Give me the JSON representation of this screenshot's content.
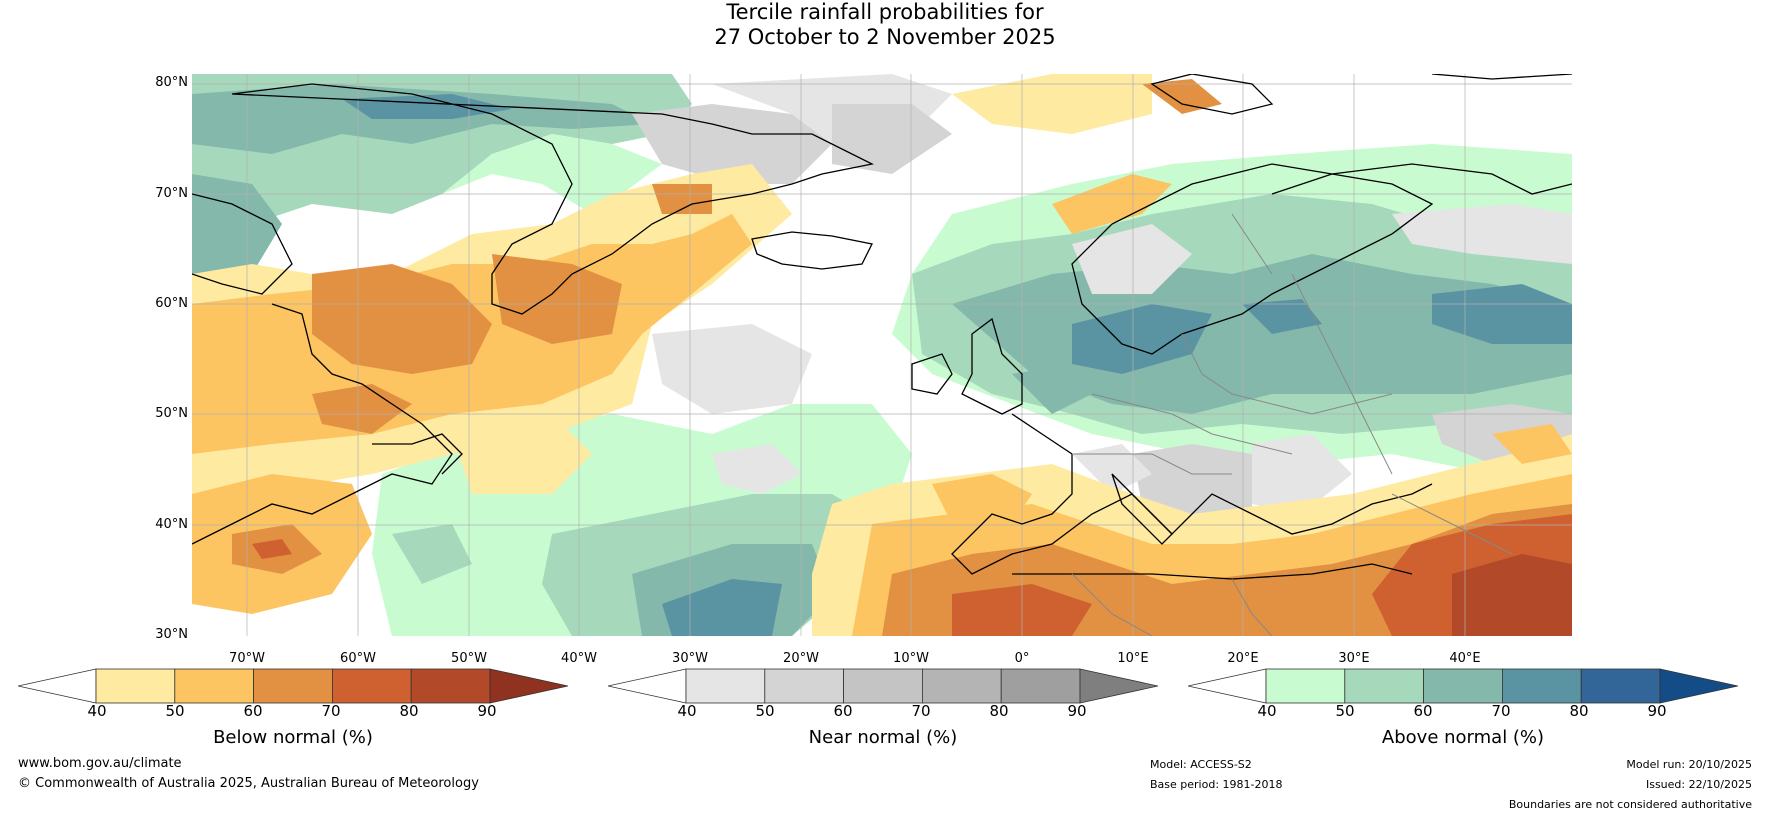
{
  "title": {
    "line1": "Tercile rainfall probabilities for",
    "line2": "27 October to 2 November 2025"
  },
  "map": {
    "lat_labels": [
      "80°N",
      "70°N",
      "60°N",
      "50°N",
      "40°N",
      "30°N"
    ],
    "lon_labels": [
      "70°W",
      "60°W",
      "50°W",
      "40°W",
      "30°W",
      "20°W",
      "10°W",
      "0°",
      "10°E",
      "20°E",
      "30°E",
      "40°E"
    ]
  },
  "legends": {
    "below": {
      "title": "Below normal (%)",
      "ticks": [
        "40",
        "50",
        "60",
        "70",
        "80",
        "90"
      ],
      "colors": [
        "#ffffff",
        "#feeaa0",
        "#fdc462",
        "#e19141",
        "#cf6130",
        "#b24a2a",
        "#8f321f"
      ]
    },
    "near": {
      "title": "Near normal (%)",
      "ticks": [
        "40",
        "50",
        "60",
        "70",
        "80",
        "90"
      ],
      "colors": [
        "#ffffff",
        "#e5e5e5",
        "#d4d4d4",
        "#c4c4c4",
        "#b4b4b4",
        "#9f9f9f",
        "#7f7f7f"
      ]
    },
    "above": {
      "title": "Above normal (%)",
      "ticks": [
        "40",
        "50",
        "60",
        "70",
        "80",
        "90"
      ],
      "colors": [
        "#ffffff",
        "#c8fcd0",
        "#a6d9bb",
        "#84b8ab",
        "#5a94a3",
        "#326598",
        "#144c87"
      ]
    }
  },
  "footer": {
    "website": "www.bom.gov.au/climate",
    "copyright": "© Commonwealth of Australia 2025, Australian Bureau of Meteorology",
    "model": "Model: ACCESS-S2",
    "base_period": "Base period: 1981-2018",
    "model_run": "Model run: 20/10/2025",
    "issued": "Issued: 22/10/2025",
    "disclaimer": "Boundaries are not considered authoritative"
  }
}
